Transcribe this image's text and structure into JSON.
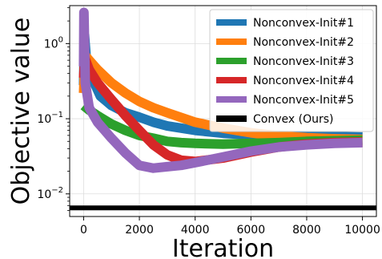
{
  "chart_data": {
    "type": "line",
    "xlabel": "Iteration",
    "ylabel": "Objective value",
    "xlim": [
      -500,
      10500
    ],
    "ylim": [
      0.005,
      3.2
    ],
    "yscale": "log",
    "grid": true,
    "legend_position": "top-right",
    "x_ticks": [
      0,
      2000,
      4000,
      6000,
      8000,
      10000
    ],
    "y_ticks": [
      {
        "value": 1,
        "base": "10",
        "exp": "0"
      },
      {
        "value": 0.1,
        "base": "10",
        "exp": "−1"
      },
      {
        "value": 0.01,
        "base": "10",
        "exp": "−2"
      }
    ],
    "series": [
      {
        "name": "Nonconvex-Init#1",
        "color": "#1f77b4",
        "x": [
          0,
          30,
          100,
          300,
          600,
          1000,
          1500,
          2000,
          2500,
          3000,
          4000,
          5000,
          6000,
          7000,
          8000,
          9000,
          10000
        ],
        "y": [
          0.28,
          1.3,
          0.6,
          0.35,
          0.2,
          0.15,
          0.12,
          0.105,
          0.09,
          0.08,
          0.07,
          0.064,
          0.061,
          0.06,
          0.059,
          0.058,
          0.057
        ]
      },
      {
        "name": "Nonconvex-Init#2",
        "color": "#ff7f0e",
        "x": [
          0,
          50,
          200,
          500,
          1000,
          1500,
          2000,
          2500,
          3000,
          4000,
          5000,
          6000,
          7000,
          8000,
          9000,
          10000
        ],
        "y": [
          0.22,
          0.7,
          0.6,
          0.45,
          0.3,
          0.22,
          0.17,
          0.14,
          0.12,
          0.09,
          0.075,
          0.065,
          0.059,
          0.056,
          0.054,
          0.053
        ]
      },
      {
        "name": "Nonconvex-Init#3",
        "color": "#2ca02c",
        "x": [
          0,
          200,
          500,
          1000,
          1500,
          2000,
          2500,
          3000,
          3500,
          4000,
          5000,
          6000,
          7000,
          8000,
          9000,
          10000
        ],
        "y": [
          0.15,
          0.13,
          0.11,
          0.085,
          0.07,
          0.06,
          0.055,
          0.05,
          0.048,
          0.047,
          0.046,
          0.047,
          0.048,
          0.05,
          0.051,
          0.052
        ]
      },
      {
        "name": "Nonconvex-Init#4",
        "color": "#d62728",
        "x": [
          0,
          40,
          200,
          500,
          1000,
          1500,
          2000,
          2500,
          3000,
          3500,
          4000,
          5000,
          6000,
          7000,
          8000,
          9000,
          10000
        ],
        "y": [
          0.35,
          0.65,
          0.45,
          0.3,
          0.18,
          0.11,
          0.07,
          0.045,
          0.033,
          0.028,
          0.027,
          0.03,
          0.036,
          0.042,
          0.046,
          0.048,
          0.049
        ]
      },
      {
        "name": "Nonconvex-Init#5",
        "color": "#9467bd",
        "x": [
          0,
          10,
          60,
          200,
          500,
          1000,
          1500,
          2000,
          2500,
          3000,
          3500,
          4000,
          5000,
          6000,
          7000,
          8000,
          9000,
          10000
        ],
        "y": [
          0.5,
          2.6,
          0.3,
          0.14,
          0.09,
          0.055,
          0.035,
          0.024,
          0.022,
          0.023,
          0.024,
          0.026,
          0.031,
          0.037,
          0.042,
          0.045,
          0.047,
          0.048
        ]
      },
      {
        "name": "Convex (Ours)",
        "color": "#000000",
        "x": [
          -500,
          10500
        ],
        "y": [
          0.0065,
          0.0065
        ]
      }
    ]
  }
}
